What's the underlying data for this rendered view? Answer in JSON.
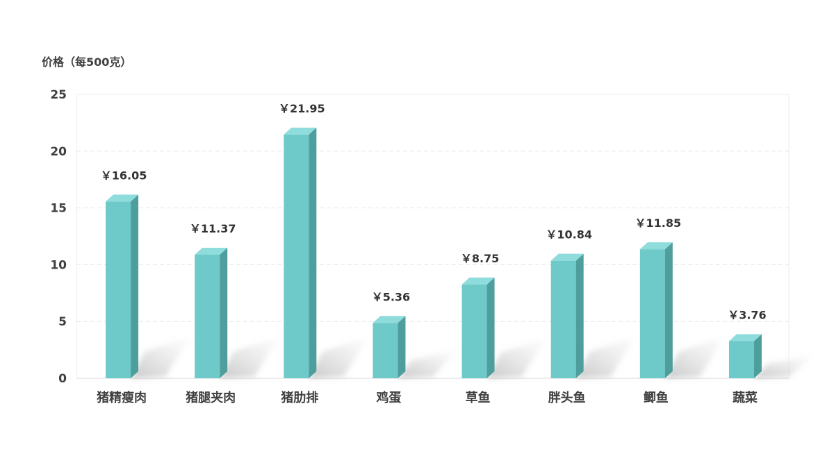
{
  "chart_data": {
    "type": "bar",
    "title": "",
    "ylabel": "价格（每500克）",
    "xlabel": "",
    "ylim": [
      0,
      25
    ],
    "yticks": [
      "0",
      "5",
      "10",
      "15",
      "20",
      "25"
    ],
    "categories": [
      "猪精瘦肉",
      "猪腿夹肉",
      "猪肋排",
      "鸡蛋",
      "草鱼",
      "胖头鱼",
      "鲫鱼",
      "蔬菜"
    ],
    "values": [
      16.05,
      11.37,
      21.95,
      5.36,
      8.75,
      10.84,
      11.85,
      3.76
    ],
    "data_labels": [
      "￥16.05",
      "￥11.37",
      "￥21.95",
      "￥5.36",
      "￥8.75",
      "￥10.84",
      "￥11.85",
      "￥3.76"
    ],
    "grid": true,
    "colors": {
      "bar_front": "#6ec9c9",
      "bar_side": "#4f9e9e",
      "bar_top": "#8fdcdc"
    }
  }
}
